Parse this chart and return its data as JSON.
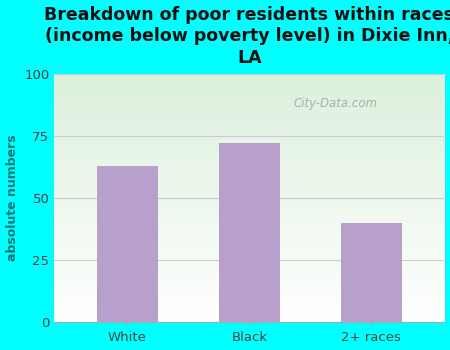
{
  "categories": [
    "White",
    "Black",
    "2+ races"
  ],
  "values": [
    63,
    72,
    40
  ],
  "bar_color": "#b8a0cc",
  "title": "Breakdown of poor residents within races\n(income below poverty level) in Dixie Inn,\nLA",
  "ylabel": "absolute numbers",
  "ylim": [
    0,
    100
  ],
  "yticks": [
    0,
    25,
    50,
    75,
    100
  ],
  "bg_color": "#00ffff",
  "watermark": "City-Data.com",
  "title_fontsize": 12.5,
  "ylabel_fontsize": 9,
  "tick_fontsize": 9.5,
  "bar_width": 0.5,
  "grid_color": "#dddddd"
}
